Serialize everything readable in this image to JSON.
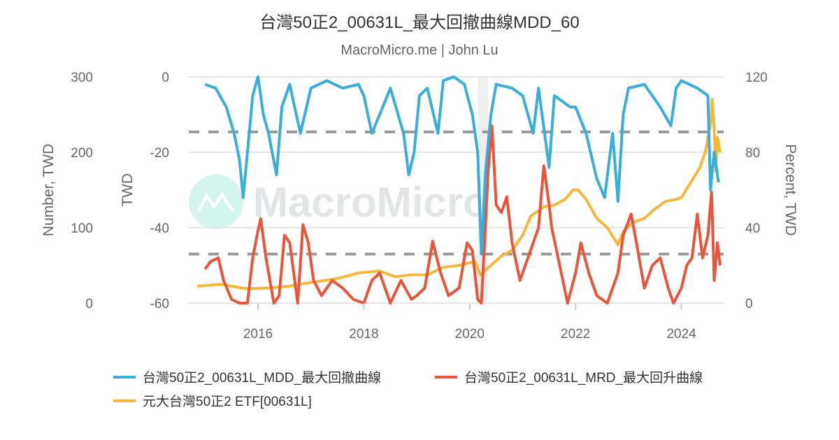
{
  "chart_data": {
    "type": "line",
    "title": "台灣50正2_00631L_最大回撤曲線MDD_60",
    "subtitle": "MacroMicro.me | John Lu",
    "watermark": "MacroMicro",
    "x_ticks": [
      "2016",
      "2018",
      "2020",
      "2022",
      "2024"
    ],
    "x_range": [
      2014.85,
      2024.73
    ],
    "axes": {
      "left_outer": {
        "title": "Number, TWD",
        "range": [
          0,
          300
        ],
        "ticks": [
          "0",
          "100",
          "200",
          "300"
        ]
      },
      "left_inner": {
        "title": "TWD",
        "range": [
          -60,
          0
        ],
        "ticks": [
          "-60",
          "-40",
          "-20",
          "0"
        ]
      },
      "right": {
        "title": "Percent, TWD",
        "range": [
          0,
          120
        ],
        "ticks": [
          "0",
          "40",
          "80",
          "120"
        ]
      }
    },
    "reference_lines_twd": [
      -14.6,
      -47
    ],
    "shaded_range": [
      2020.15,
      2020.35
    ],
    "colors": {
      "mdd": "#3aaed8",
      "mrd": "#e8553a",
      "etf": "#f5b83d",
      "grid": "#e6e6e6",
      "dash": "#999999"
    },
    "series": [
      {
        "name": "台灣50正2_00631L_MDD_最大回撤曲線",
        "axis": "left_inner",
        "color": "#3aaed8",
        "x": [
          2015.0,
          2015.2,
          2015.4,
          2015.55,
          2015.65,
          2015.72,
          2015.8,
          2015.9,
          2016.0,
          2016.1,
          2016.2,
          2016.35,
          2016.45,
          2016.6,
          2016.8,
          2017.0,
          2017.3,
          2017.6,
          2017.9,
          2018.0,
          2018.15,
          2018.3,
          2018.5,
          2018.75,
          2018.85,
          2018.95,
          2019.05,
          2019.2,
          2019.4,
          2019.5,
          2019.7,
          2019.9,
          2020.05,
          2020.15,
          2020.22,
          2020.3,
          2020.4,
          2020.5,
          2020.8,
          2021.0,
          2021.2,
          2021.3,
          2021.5,
          2021.6,
          2021.9,
          2022.0,
          2022.2,
          2022.4,
          2022.55,
          2022.7,
          2022.8,
          2022.9,
          2023.0,
          2023.3,
          2023.6,
          2023.8,
          2023.9,
          2024.0,
          2024.3,
          2024.5,
          2024.55,
          2024.62,
          2024.7
        ],
        "y": [
          -2,
          -3,
          -8,
          -15,
          -22,
          -32,
          -20,
          -5,
          0,
          -10,
          -15,
          -26,
          -8,
          -2,
          -15,
          -3,
          -1,
          -3,
          -2,
          -5,
          -15,
          -10,
          -3,
          -15,
          -26,
          -20,
          -5,
          -3,
          -15,
          -1,
          0,
          -2,
          -10,
          -20,
          -47,
          -25,
          -10,
          -2,
          -3,
          -5,
          -15,
          -3,
          -24,
          -5,
          -8,
          -8,
          -15,
          -27,
          -32,
          -15,
          -33,
          -10,
          -3,
          -2,
          -8,
          -13,
          -3,
          -1,
          -3,
          -5,
          -30,
          -20,
          -28
        ]
      },
      {
        "name": "台灣50正2_00631L_MRD_最大回升曲線",
        "axis": "left_outer",
        "color": "#e8553a",
        "x": [
          2015.0,
          2015.1,
          2015.25,
          2015.35,
          2015.5,
          2015.65,
          2015.8,
          2015.9,
          2016.0,
          2016.05,
          2016.15,
          2016.3,
          2016.4,
          2016.5,
          2016.6,
          2016.75,
          2016.85,
          2016.95,
          2017.05,
          2017.2,
          2017.4,
          2017.6,
          2017.8,
          2018.0,
          2018.15,
          2018.3,
          2018.5,
          2018.7,
          2018.9,
          2019.0,
          2019.15,
          2019.3,
          2019.45,
          2019.6,
          2019.8,
          2019.95,
          2020.05,
          2020.15,
          2020.22,
          2020.28,
          2020.35,
          2020.42,
          2020.5,
          2020.6,
          2020.7,
          2020.8,
          2020.95,
          2021.1,
          2021.3,
          2021.4,
          2021.5,
          2021.55,
          2021.7,
          2021.85,
          2022.0,
          2022.1,
          2022.25,
          2022.4,
          2022.6,
          2022.8,
          2022.9,
          2023.05,
          2023.15,
          2023.3,
          2023.45,
          2023.6,
          2023.75,
          2023.85,
          2024.0,
          2024.1,
          2024.2,
          2024.3,
          2024.4,
          2024.5,
          2024.57,
          2024.62,
          2024.68,
          2024.73
        ],
        "y": [
          45,
          55,
          60,
          30,
          5,
          0,
          0,
          60,
          96,
          112,
          60,
          0,
          10,
          90,
          80,
          0,
          104,
          80,
          30,
          10,
          30,
          20,
          5,
          0,
          30,
          40,
          0,
          30,
          5,
          10,
          20,
          82,
          40,
          10,
          20,
          80,
          70,
          5,
          0,
          80,
          177,
          235,
          130,
          120,
          141,
          80,
          30,
          60,
          100,
          182,
          130,
          100,
          50,
          0,
          40,
          80,
          40,
          10,
          0,
          40,
          90,
          118,
          80,
          20,
          50,
          60,
          20,
          0,
          20,
          50,
          60,
          118,
          60,
          90,
          147,
          30,
          80,
          50
        ]
      },
      {
        "name": "元大台灣50正2 ETF[00631L]",
        "axis": "right",
        "color": "#f5b83d",
        "x": [
          2014.85,
          2015.3,
          2015.7,
          2015.8,
          2016.2,
          2016.6,
          2017.0,
          2017.5,
          2017.9,
          2018.3,
          2018.6,
          2018.9,
          2019.2,
          2019.5,
          2019.8,
          2020.1,
          2020.2,
          2020.4,
          2020.6,
          2020.8,
          2021.0,
          2021.15,
          2021.4,
          2021.6,
          2021.8,
          2021.95,
          2022.05,
          2022.2,
          2022.4,
          2022.6,
          2022.8,
          2022.9,
          2023.1,
          2023.3,
          2023.5,
          2023.7,
          2023.9,
          2024.0,
          2024.2,
          2024.35,
          2024.45,
          2024.55,
          2024.58,
          2024.62,
          2024.65,
          2024.68,
          2024.73
        ],
        "y": [
          9,
          10,
          8,
          7.7,
          8,
          9,
          11,
          13,
          16,
          17,
          14,
          15,
          15,
          19,
          20,
          22,
          15,
          20,
          25,
          28,
          36,
          46,
          51,
          52,
          55,
          60,
          60,
          55,
          45,
          40,
          31,
          38,
          43,
          45,
          50,
          54,
          55,
          56,
          65,
          72,
          80,
          95,
          108,
          92,
          70,
          88,
          80
        ]
      }
    ]
  }
}
